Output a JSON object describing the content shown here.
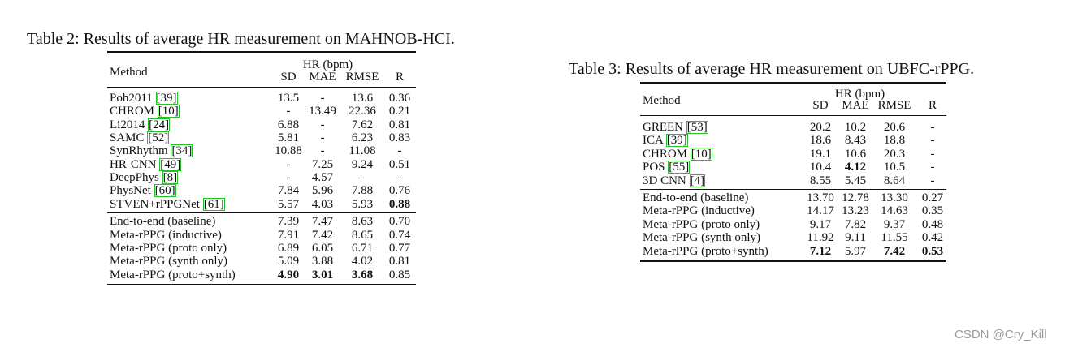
{
  "tables": [
    {
      "caption": "Table 2: Results of average HR measurement on MAHNOB-HCI.",
      "header": {
        "method": "Method",
        "group": "HR (bpm)",
        "columns": [
          "SD",
          "MAE",
          "RMSE",
          "R"
        ]
      },
      "groups": [
        [
          {
            "method": "Poh2011",
            "ref": "[39]",
            "values": [
              "13.5",
              "-",
              "13.6",
              "0.36"
            ]
          },
          {
            "method": "CHROM",
            "ref": "[10]",
            "values": [
              "-",
              "13.49",
              "22.36",
              "0.21"
            ]
          },
          {
            "method": "Li2014",
            "ref": "[24]",
            "values": [
              "6.88",
              "-",
              "7.62",
              "0.81"
            ]
          },
          {
            "method": "SAMC",
            "ref": "[52]",
            "values": [
              "5.81",
              "-",
              "6.23",
              "0.83"
            ]
          },
          {
            "method": "SynRhythm",
            "ref": "[34]",
            "values": [
              "10.88",
              "-",
              "11.08",
              "-"
            ]
          },
          {
            "method": "HR-CNN",
            "ref": "[49]",
            "values": [
              "-",
              "7.25",
              "9.24",
              "0.51"
            ]
          },
          {
            "method": "DeepPhys",
            "ref": "[8]",
            "values": [
              "-",
              "4.57",
              "-",
              "-"
            ]
          },
          {
            "method": "PhysNet",
            "ref": "[60]",
            "values": [
              "7.84",
              "5.96",
              "7.88",
              "0.76"
            ]
          },
          {
            "method": "STVEN+rPPGNet",
            "ref": "[61]",
            "values": [
              "5.57",
              "4.03",
              "5.93",
              "0.88"
            ],
            "bold": [
              3
            ]
          }
        ],
        [
          {
            "method": "End-to-end (baseline)",
            "values": [
              "7.39",
              "7.47",
              "8.63",
              "0.70"
            ]
          },
          {
            "method": "Meta-rPPG (inductive)",
            "values": [
              "7.91",
              "7.42",
              "8.65",
              "0.74"
            ]
          },
          {
            "method": "Meta-rPPG (proto only)",
            "values": [
              "6.89",
              "6.05",
              "6.71",
              "0.77"
            ]
          },
          {
            "method": "Meta-rPPG (synth only)",
            "values": [
              "5.09",
              "3.88",
              "4.02",
              "0.81"
            ]
          },
          {
            "method": "Meta-rPPG (proto+synth)",
            "values": [
              "4.90",
              "3.01",
              "3.68",
              "0.85"
            ],
            "bold": [
              0,
              1,
              2
            ]
          }
        ]
      ]
    },
    {
      "caption": "Table 3: Results of average HR measurement on  UBFC-rPPG.",
      "header": {
        "method": "Method",
        "group": "HR (bpm)",
        "columns": [
          "SD",
          "MAE",
          "RMSE",
          "R"
        ]
      },
      "groups": [
        [
          {
            "method": "GREEN",
            "ref": "[53]",
            "values": [
              "20.2",
              "10.2",
              "20.6",
              "-"
            ]
          },
          {
            "method": "ICA",
            "ref": "[39]",
            "values": [
              "18.6",
              "8.43",
              "18.8",
              "-"
            ]
          },
          {
            "method": "CHROM",
            "ref": "[10]",
            "values": [
              "19.1",
              "10.6",
              "20.3",
              "-"
            ]
          },
          {
            "method": "POS",
            "ref": "[55]",
            "values": [
              "10.4",
              "4.12",
              "10.5",
              "-"
            ],
            "bold": [
              1
            ]
          },
          {
            "method": "3D CNN",
            "ref": "[4]",
            "values": [
              "8.55",
              "5.45",
              "8.64",
              "-"
            ]
          }
        ],
        [
          {
            "method": "End-to-end (baseline)",
            "values": [
              "13.70",
              "12.78",
              "13.30",
              "0.27"
            ]
          },
          {
            "method": "Meta-rPPG (inductive)",
            "values": [
              "14.17",
              "13.23",
              "14.63",
              "0.35"
            ]
          },
          {
            "method": "Meta-rPPG (proto only)",
            "values": [
              "9.17",
              "7.82",
              "9.37",
              "0.48"
            ]
          },
          {
            "method": "Meta-rPPG (synth only)",
            "values": [
              "11.92",
              "9.11",
              "11.55",
              "0.42"
            ]
          },
          {
            "method": "Meta-rPPG (proto+synth)",
            "values": [
              "7.12",
              "5.97",
              "7.42",
              "0.53"
            ],
            "bold": [
              0,
              2,
              3
            ]
          }
        ]
      ]
    }
  ],
  "watermark": "CSDN @Cry_Kill"
}
